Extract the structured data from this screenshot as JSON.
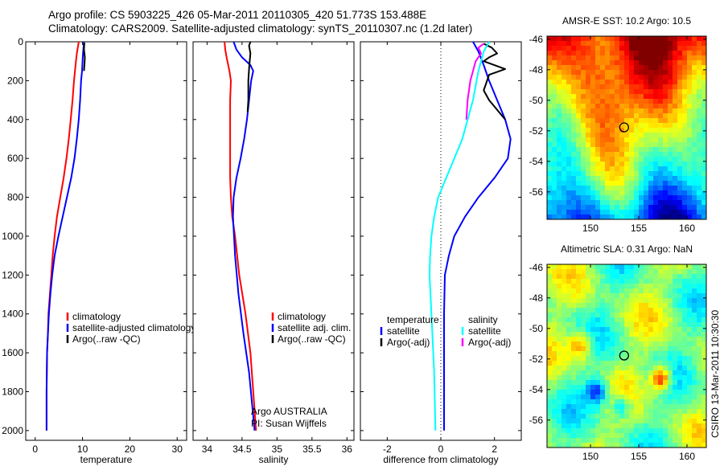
{
  "header": {
    "line1": "Argo profile: CS 5903225_426 05-Mar-2011 20110305_420 51.773S 153.488E",
    "line2": "Climatology: CARS2009. Satellite-adjusted climatology: synTS_20110307.nc (1.2d later)"
  },
  "side_label": "CSIRO 13-Mar-2011 10:30:30",
  "colors": {
    "red": "#ff0000",
    "blue": "#0000ff",
    "black": "#000000",
    "cyan": "#00ffff",
    "magenta": "#ff00ff"
  },
  "chart_data": [
    {
      "type": "line",
      "id": "temperature",
      "xlabel": "temperature",
      "ylabel": "",
      "xlim": [
        -2,
        32
      ],
      "ylim": [
        2050,
        0
      ],
      "xticks": [
        0,
        10,
        20,
        30
      ],
      "yticks": [
        0,
        200,
        400,
        600,
        800,
        1000,
        1200,
        1400,
        1600,
        1800,
        2000
      ],
      "legend": [
        "climatology",
        "satellite-adjusted climatology",
        "Argo(..raw -QC)"
      ],
      "series": [
        {
          "name": "climatology",
          "color": "red",
          "x": [
            9.2,
            9.0,
            8.8,
            8.6,
            8.4,
            8.2,
            7.9,
            7.5,
            7.1,
            6.6,
            6.0,
            5.3,
            4.6,
            4.1,
            3.7,
            3.4,
            3.1,
            2.8,
            2.7,
            2.5,
            2.4,
            2.4
          ],
          "y": [
            0,
            30,
            60,
            100,
            150,
            200,
            300,
            400,
            500,
            600,
            700,
            800,
            900,
            1000,
            1100,
            1200,
            1300,
            1400,
            1500,
            1600,
            1800,
            2000
          ]
        },
        {
          "name": "satellite-adjusted climatology",
          "color": "blue",
          "x": [
            10.3,
            10.2,
            10.1,
            10.0,
            9.9,
            9.7,
            9.5,
            9.2,
            8.8,
            8.3,
            7.6,
            6.7,
            5.8,
            4.9,
            4.1,
            3.6,
            3.2,
            2.9,
            2.7,
            2.5,
            2.4,
            2.4
          ],
          "y": [
            0,
            30,
            60,
            100,
            150,
            200,
            300,
            400,
            500,
            600,
            700,
            800,
            900,
            1000,
            1100,
            1200,
            1300,
            1400,
            1500,
            1600,
            1800,
            2000
          ]
        },
        {
          "name": "Argo(..raw -QC)",
          "color": "black",
          "x": [
            10.4,
            10.3,
            10.5,
            10.4,
            10.3
          ],
          "y": [
            5,
            40,
            80,
            120,
            150
          ]
        }
      ]
    },
    {
      "type": "line",
      "id": "salinity",
      "xlabel": "salinity",
      "ylabel": "",
      "xlim": [
        33.8,
        36.1
      ],
      "ylim": [
        2050,
        0
      ],
      "xticks": [
        34,
        34.5,
        35,
        35.5,
        36
      ],
      "yticks": [
        0,
        200,
        400,
        600,
        800,
        1000,
        1200,
        1400,
        1600,
        1800,
        2000
      ],
      "legend": [
        "climatology",
        "satellite adj. clim.",
        "Argo(..raw -QC)"
      ],
      "annotation": [
        "Argo AUSTRALIA",
        "PI: Susan Wijffels"
      ],
      "series": [
        {
          "name": "climatology",
          "color": "red",
          "x": [
            34.25,
            34.26,
            34.28,
            34.32,
            34.34,
            34.33,
            34.33,
            34.33,
            34.33,
            34.33,
            34.34,
            34.36,
            34.4,
            34.46,
            34.55,
            34.62,
            34.66,
            34.7
          ],
          "y": [
            0,
            40,
            80,
            150,
            200,
            300,
            400,
            500,
            600,
            700,
            800,
            900,
            1000,
            1200,
            1400,
            1600,
            1800,
            2000
          ]
        },
        {
          "name": "satellite adj. clim.",
          "color": "blue",
          "x": [
            34.38,
            34.42,
            34.5,
            34.62,
            34.66,
            34.63,
            34.6,
            34.57,
            34.53,
            34.48,
            34.42,
            34.38,
            34.37,
            34.4,
            34.45,
            34.52,
            34.6,
            34.68
          ],
          "y": [
            0,
            40,
            80,
            120,
            150,
            200,
            300,
            400,
            500,
            600,
            700,
            800,
            900,
            1100,
            1300,
            1500,
            1700,
            2000
          ]
        },
        {
          "name": "Argo(..raw -QC)",
          "color": "black",
          "x": [
            34.62,
            34.6,
            34.62,
            34.61,
            34.6,
            34.59,
            34.59,
            34.58
          ],
          "y": [
            0,
            20,
            60,
            100,
            140,
            200,
            300,
            360
          ]
        }
      ]
    },
    {
      "type": "line",
      "id": "difference",
      "xlabel": "difference from climatology",
      "ylabel": "",
      "xlim": [
        -3,
        3
      ],
      "ylim": [
        2050,
        0
      ],
      "xticks": [
        -2,
        0,
        2
      ],
      "yticks": [
        0,
        200,
        400,
        600,
        800,
        1000,
        1200,
        1400,
        1600,
        1800,
        2000
      ],
      "legend": [
        {
          "group": "temperature",
          "items": [
            "satellite",
            "Argo(-adj)"
          ]
        },
        {
          "group": "salinity",
          "items": [
            "satellite",
            "Argo(-adj)"
          ]
        }
      ],
      "series": [
        {
          "name": "temperature satellite",
          "color": "blue",
          "x": [
            1.2,
            1.4,
            1.6,
            1.8,
            2.1,
            2.4,
            2.6,
            2.5,
            2.0,
            1.4,
            0.9,
            0.5,
            0.3,
            0.15,
            0.12,
            0.12,
            0.12
          ],
          "y": [
            0,
            50,
            120,
            200,
            300,
            400,
            500,
            600,
            700,
            800,
            900,
            1000,
            1100,
            1200,
            1400,
            1700,
            2000
          ]
        },
        {
          "name": "temperature Argo(-adj)",
          "color": "black",
          "x": [
            1.6,
            1.9,
            2.1,
            1.8,
            1.6,
            2.4,
            1.8,
            1.6,
            1.8,
            2.4
          ],
          "y": [
            10,
            30,
            60,
            80,
            100,
            140,
            170,
            250,
            300,
            400
          ]
        },
        {
          "name": "salinity satellite",
          "color": "cyan",
          "x": [
            1.8,
            1.6,
            1.4,
            1.2,
            1.0,
            0.8,
            0.5,
            0.2,
            -0.1,
            -0.25,
            -0.35,
            -0.4,
            -0.42,
            -0.35,
            -0.25,
            -0.2
          ],
          "y": [
            0,
            50,
            150,
            300,
            400,
            500,
            600,
            700,
            800,
            900,
            1000,
            1100,
            1200,
            1400,
            1700,
            2000
          ]
        },
        {
          "name": "salinity Argo(-adj)",
          "color": "magenta",
          "x": [
            1.6,
            1.4,
            1.5,
            1.3,
            1.2,
            1.1,
            1.0,
            0.95
          ],
          "y": [
            10,
            30,
            60,
            100,
            150,
            200,
            300,
            400
          ]
        }
      ]
    },
    {
      "type": "heatmap",
      "id": "sst-map",
      "title": "AMSR-E SST: 10.2 Argo: 10.5",
      "xlim": [
        145.5,
        162
      ],
      "ylim": [
        -57.8,
        -45.8
      ],
      "xticks": [
        150,
        155,
        160
      ],
      "yticks": [
        -46,
        -48,
        -50,
        -52,
        -54,
        -56
      ],
      "marker": {
        "lon": 153.488,
        "lat": -51.773
      }
    },
    {
      "type": "heatmap",
      "id": "sla-map",
      "title": "Altimetric SLA: 0.31 Argo: NaN",
      "xlim": [
        145.5,
        162
      ],
      "ylim": [
        -57.8,
        -45.8
      ],
      "xticks": [
        150,
        155,
        160
      ],
      "yticks": [
        -46,
        -48,
        -50,
        -52,
        -54,
        -56
      ],
      "marker": {
        "lon": 153.488,
        "lat": -51.773
      }
    }
  ]
}
